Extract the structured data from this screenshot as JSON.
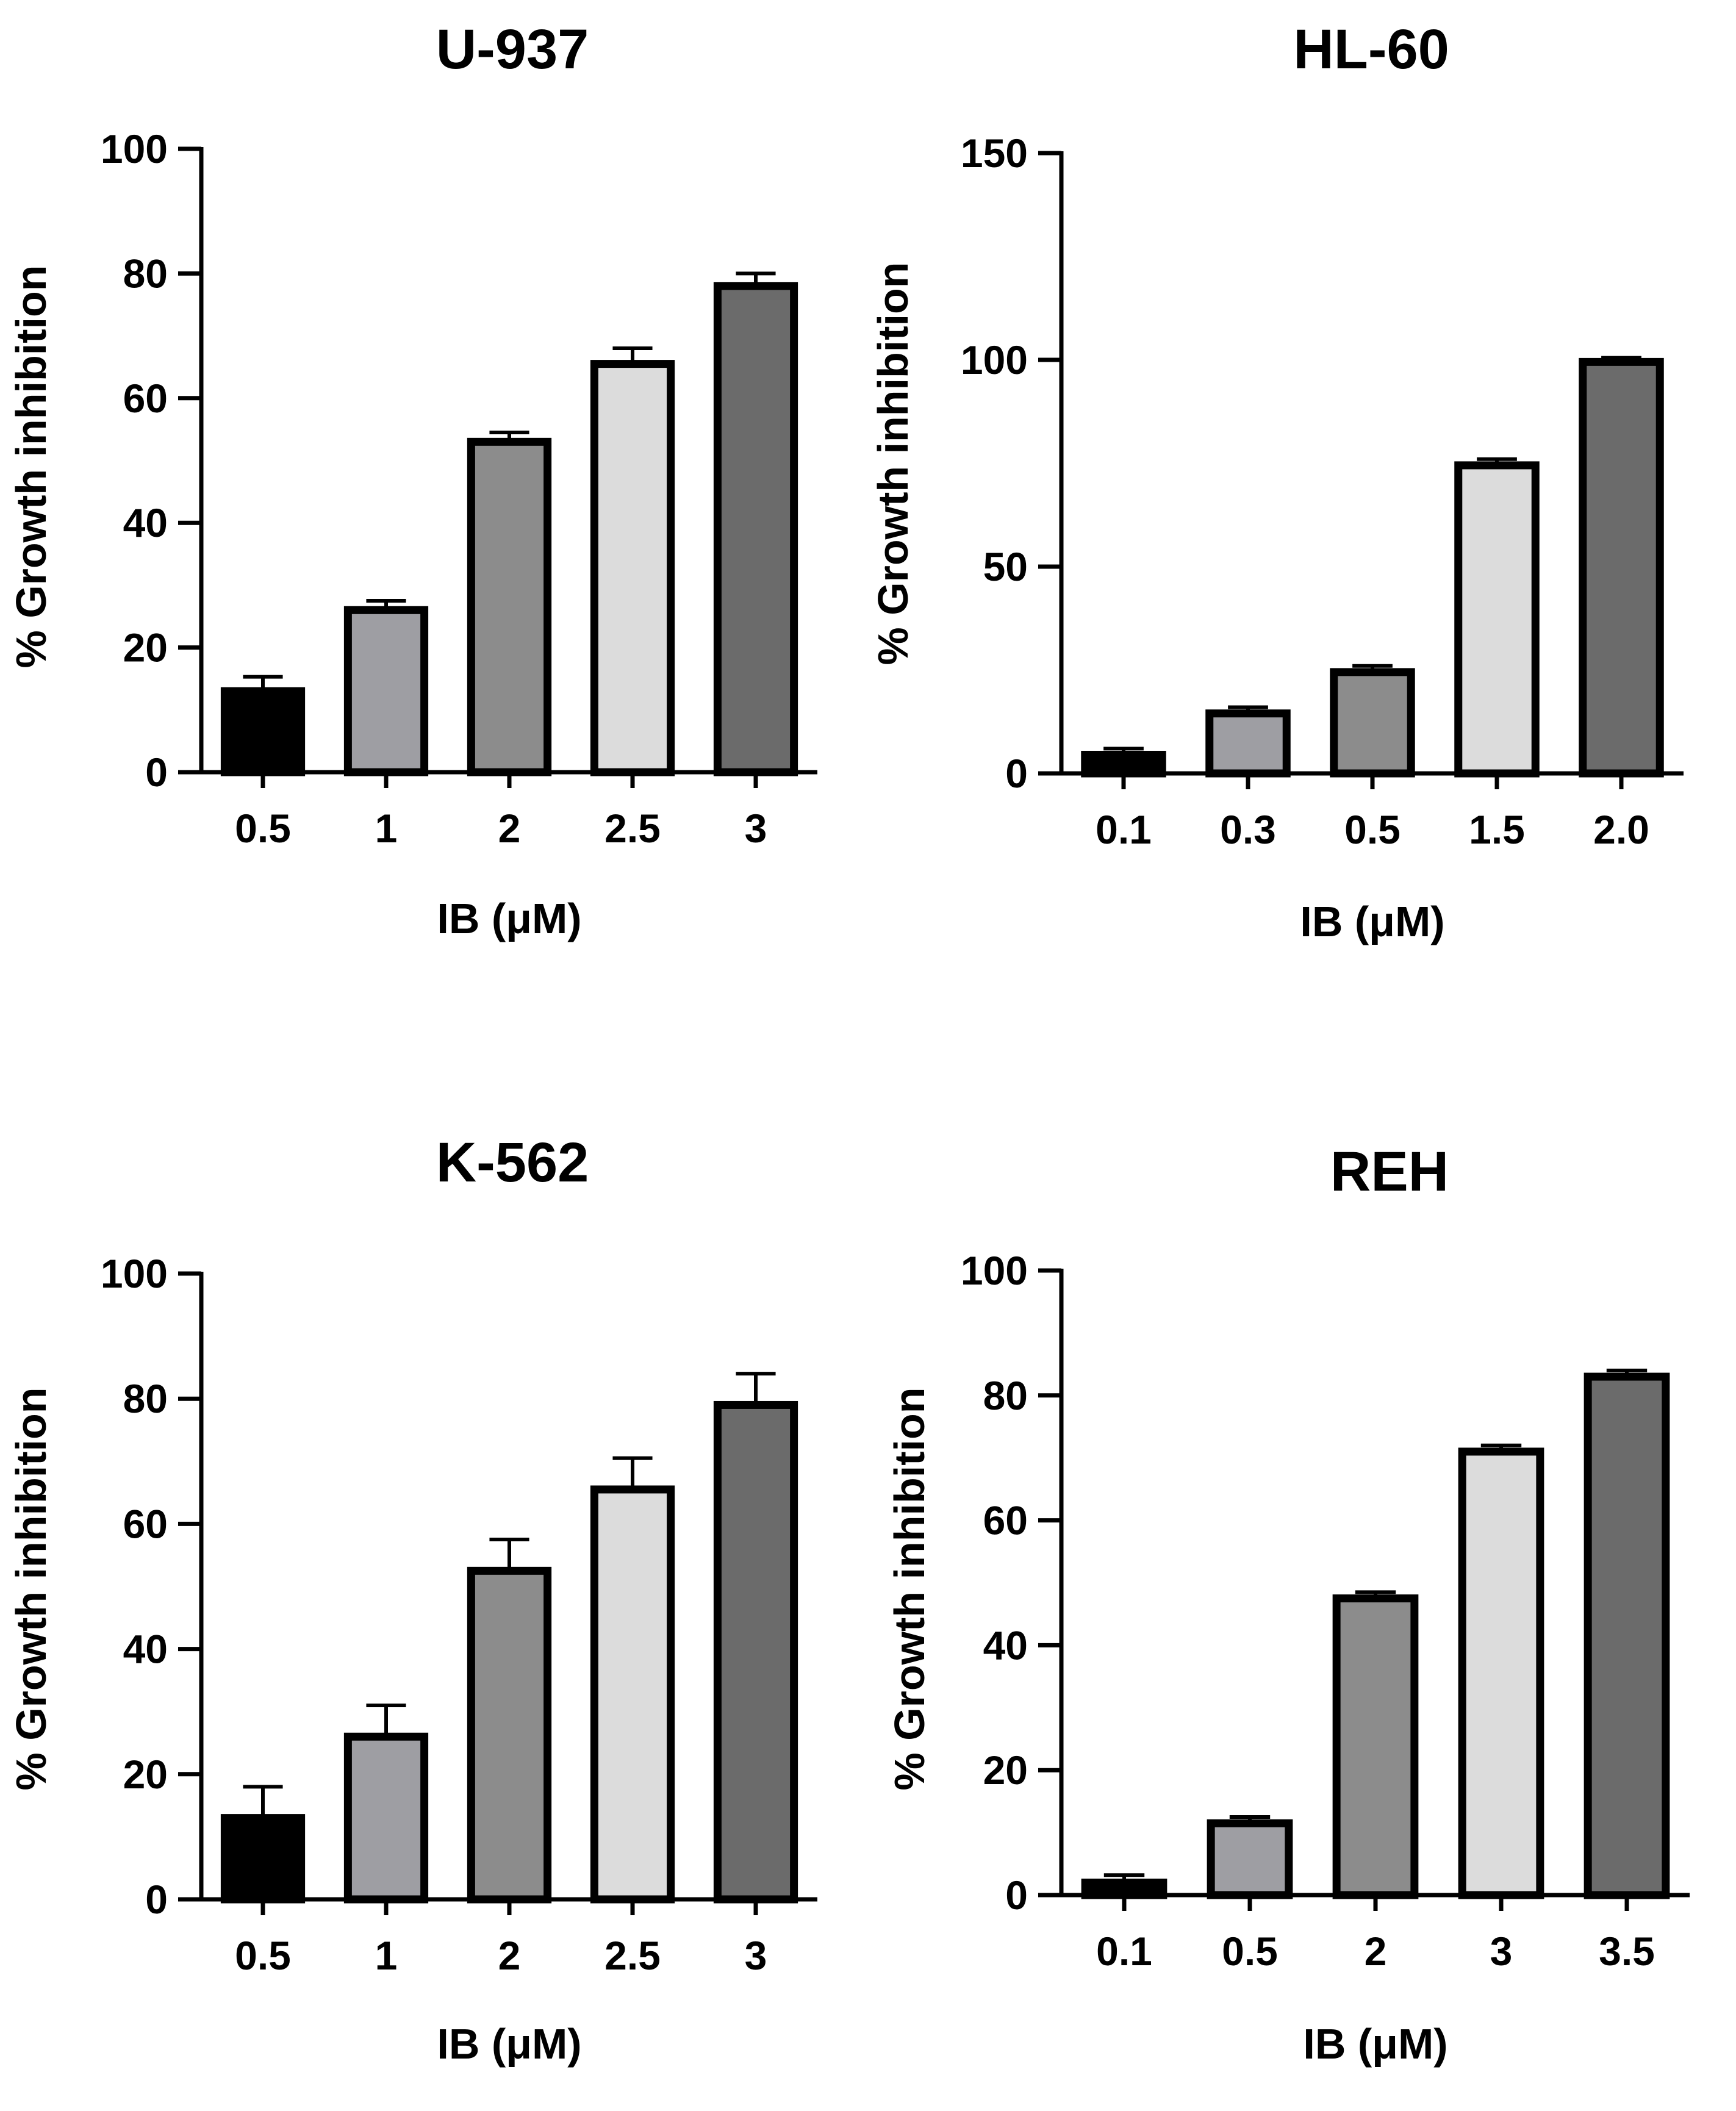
{
  "chart_data": [
    {
      "type": "bar",
      "title": "U-937",
      "xlabel": "IB (μM)",
      "ylabel": "% Growth inhibition",
      "ylim": [
        0,
        100
      ],
      "yticks": [
        0,
        20,
        40,
        60,
        80,
        100
      ],
      "categories": [
        "0.5",
        "1",
        "2",
        "2.5",
        "3"
      ],
      "values": [
        13,
        26,
        53,
        65.5,
        78
      ],
      "errors": [
        2.3,
        1.5,
        1.5,
        2.5,
        2
      ],
      "fills": [
        "#000000",
        "#9e9ea3",
        "#8c8c8c",
        "#dcdcdc",
        "#6b6b6b"
      ]
    },
    {
      "type": "bar",
      "title": "HL-60",
      "xlabel": "IB (μM)",
      "ylabel": "% Growth inhibition",
      "ylim": [
        0,
        150
      ],
      "yticks": [
        0,
        50,
        100,
        150
      ],
      "categories": [
        "0.1",
        "0.3",
        "0.5",
        "1.5",
        "2.0"
      ],
      "values": [
        4.5,
        14.5,
        24.5,
        74.5,
        99.5
      ],
      "errors": [
        1.5,
        1.5,
        1.5,
        1.5,
        1
      ],
      "fills": [
        "#000000",
        "#9e9ea3",
        "#8c8c8c",
        "#dcdcdc",
        "#6b6b6b"
      ]
    },
    {
      "type": "bar",
      "title": "K-562",
      "xlabel": "IB (μM)",
      "ylabel": "% Growth inhibition",
      "ylim": [
        0,
        100
      ],
      "yticks": [
        0,
        20,
        40,
        60,
        80,
        100
      ],
      "categories": [
        "0.5",
        "1",
        "2",
        "2.5",
        "3"
      ],
      "values": [
        13,
        26,
        52.5,
        65.5,
        79
      ],
      "errors": [
        5,
        5,
        5,
        5,
        5
      ],
      "fills": [
        "#000000",
        "#9e9ea3",
        "#8c8c8c",
        "#dcdcdc",
        "#6b6b6b"
      ]
    },
    {
      "type": "bar",
      "title": "REH",
      "xlabel": "IB (μM)",
      "ylabel": "% Growth inhibition",
      "ylim": [
        0,
        100
      ],
      "yticks": [
        0,
        20,
        40,
        60,
        80,
        100
      ],
      "categories": [
        "0.1",
        "0.5",
        "2",
        "3",
        "3.5"
      ],
      "values": [
        2,
        11.5,
        47.5,
        71,
        83
      ],
      "errors": [
        1.2,
        1,
        1,
        1,
        1
      ],
      "fills": [
        "#000000",
        "#9e9ea3",
        "#8c8c8c",
        "#dcdcdc",
        "#6b6b6b"
      ]
    }
  ]
}
